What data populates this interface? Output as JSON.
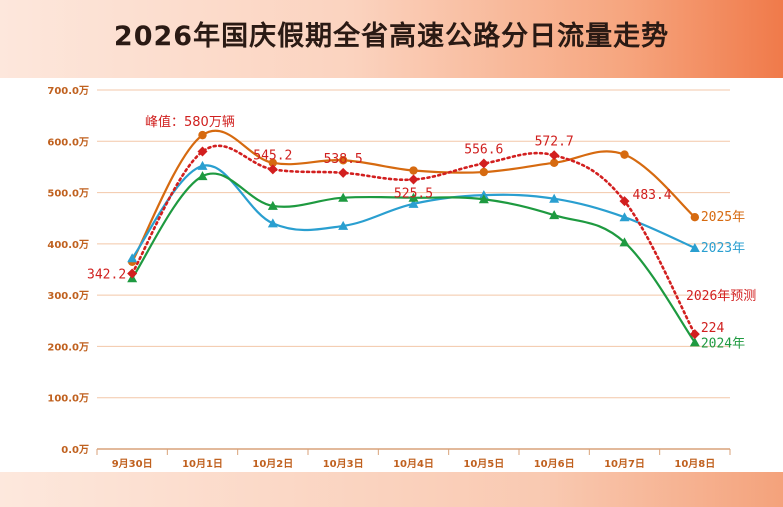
{
  "title": "2026年国庆假期全省高速公路分日流量走势",
  "chart_data": {
    "type": "line",
    "title": "2026年国庆假期全省高速公路分日流量走势",
    "xlabel": "",
    "ylabel": "",
    "ylim": [
      0,
      700
    ],
    "grid": true,
    "y_ticks": [
      "0.0万",
      "100.0万",
      "200.0万",
      "300.0万",
      "400.0万",
      "500.0万",
      "600.0万",
      "700.0万"
    ],
    "categories": [
      "9月30日",
      "10月1日",
      "10月2日",
      "10月3日",
      "10月4日",
      "10月5日",
      "10月6日",
      "10月7日",
      "10月8日"
    ],
    "series": [
      {
        "name": "2025年",
        "color": "#d66a10",
        "marker": "circle",
        "style": "solid",
        "values": [
          365,
          612,
          558,
          563,
          543,
          540,
          558,
          574,
          452
        ]
      },
      {
        "name": "2023年",
        "color": "#2a9fd0",
        "marker": "triangle",
        "style": "solid",
        "values": [
          372,
          552,
          440,
          435,
          478,
          495,
          488,
          452,
          392
        ]
      },
      {
        "name": "2024年",
        "color": "#1e9a40",
        "marker": "triangle",
        "style": "solid",
        "values": [
          333,
          532,
          474,
          490,
          490,
          487,
          456,
          403,
          208
        ]
      },
      {
        "name": "2026年预测",
        "color": "#d21f1f",
        "marker": "diamond",
        "style": "dotted",
        "values": [
          342.2,
          580,
          545.2,
          538.5,
          525.5,
          556.6,
          572.7,
          483.4,
          224
        ],
        "labels": [
          "342.2",
          "",
          "545.2",
          "538.5",
          "525.5",
          "556.6",
          "572.7",
          "483.4",
          "224"
        ]
      }
    ],
    "annotations": [
      {
        "text": "峰值：580万辆"
      }
    ]
  }
}
